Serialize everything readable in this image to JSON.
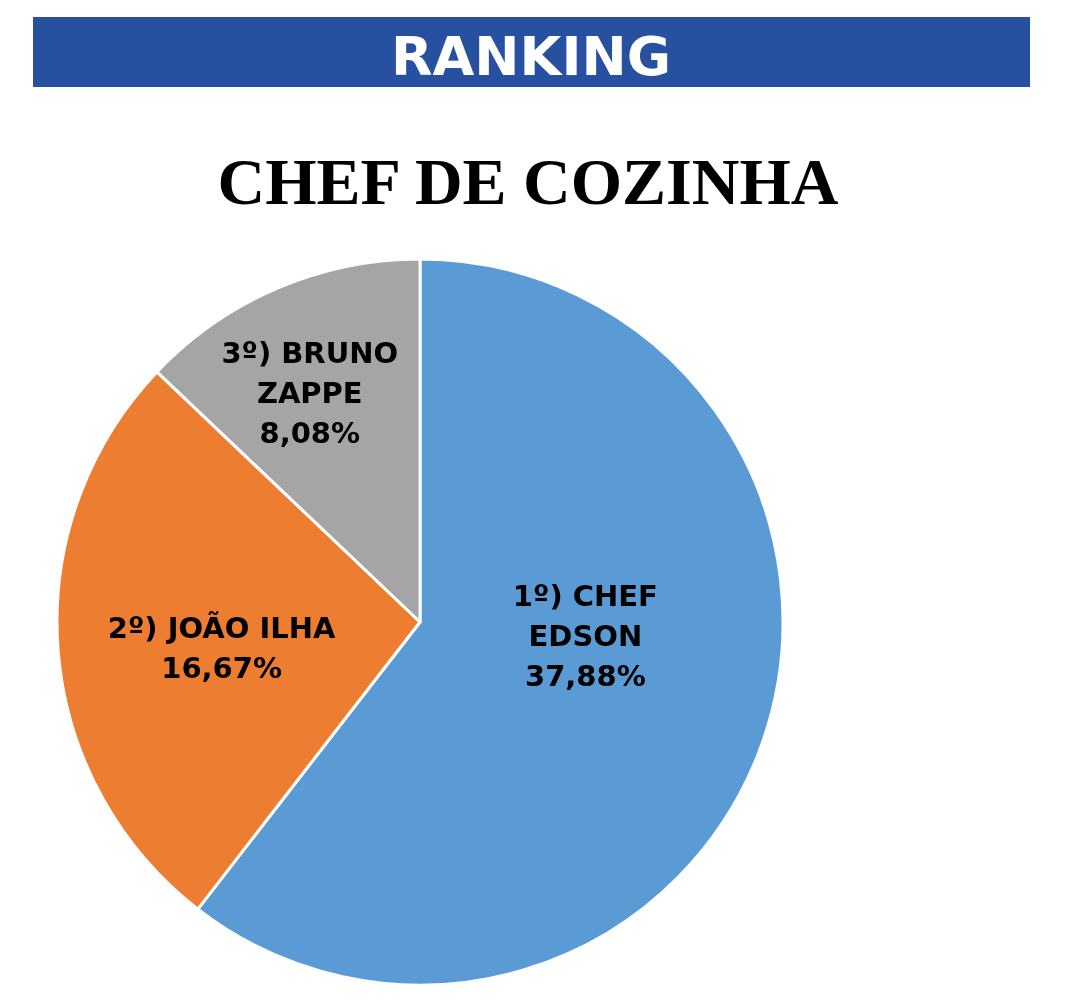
{
  "chart_data": {
    "type": "pie",
    "title": "RANKING",
    "subtitle": "CHEF DE COZINHA",
    "categories": [
      "1º) CHEF EDSON",
      "2º) JOÃO ILHA",
      "3º) BRUNO ZAPPE"
    ],
    "values": [
      37.88,
      16.67,
      8.08
    ],
    "value_labels": [
      "37,88%",
      "16,67%",
      "8,08%"
    ],
    "colors": [
      "#5b9bd5",
      "#ed7d31",
      "#a5a5a5"
    ]
  }
}
